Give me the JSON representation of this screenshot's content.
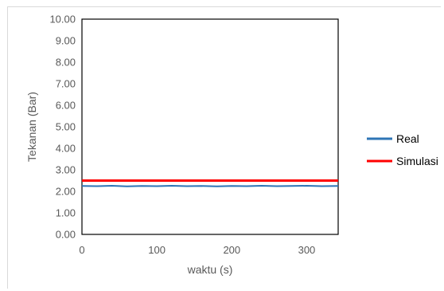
{
  "chart_data": {
    "type": "line",
    "xlabel": "waktu (s)",
    "ylabel": "Tekanan (Bar)",
    "xlim": [
      0,
      342
    ],
    "ylim": [
      0,
      10
    ],
    "x_ticks": [
      "0",
      "100",
      "200",
      "300"
    ],
    "y_ticks": [
      "0.00",
      "1.00",
      "2.00",
      "3.00",
      "4.00",
      "5.00",
      "6.00",
      "7.00",
      "8.00",
      "9.00",
      "10.00"
    ],
    "grid": false,
    "legend_position": "right",
    "series": [
      {
        "name": "Real",
        "color": "#2e75b6",
        "x": [
          0,
          20,
          40,
          60,
          80,
          100,
          120,
          140,
          160,
          180,
          200,
          220,
          240,
          260,
          280,
          300,
          320,
          342
        ],
        "y": [
          2.25,
          2.24,
          2.26,
          2.23,
          2.25,
          2.24,
          2.26,
          2.24,
          2.25,
          2.23,
          2.25,
          2.24,
          2.26,
          2.24,
          2.25,
          2.26,
          2.24,
          2.25
        ]
      },
      {
        "name": "Simulasi",
        "color": "#ff0000",
        "x": [
          0,
          342
        ],
        "y": [
          2.5,
          2.5
        ]
      }
    ]
  }
}
